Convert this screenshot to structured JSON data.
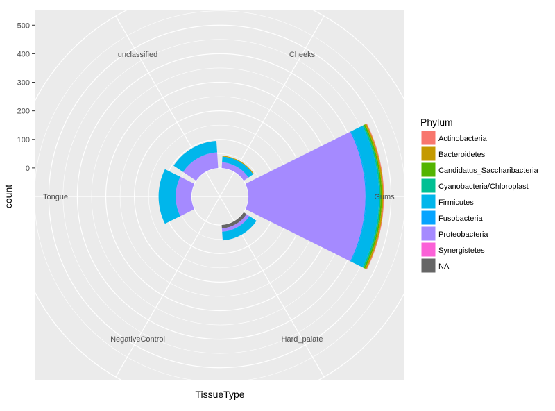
{
  "chart_data": {
    "type": "bar",
    "coord": "polar",
    "xlabel": "TissueType",
    "ylabel": "count",
    "categories": [
      "Gums",
      "Cheeks",
      "unclassified",
      "Tongue",
      "NegativeControl",
      "Hard_palate"
    ],
    "r_ticks": [
      0,
      100,
      200,
      300,
      400,
      500
    ],
    "rlim": [
      -100,
      630
    ],
    "grid": true,
    "legend": {
      "title": "Phylum",
      "position": "right",
      "entries": [
        {
          "name": "Actinobacteria",
          "color": "#F8766D"
        },
        {
          "name": "Bacteroidetes",
          "color": "#C49A00"
        },
        {
          "name": "Candidatus_Saccharibacteria",
          "color": "#53B400"
        },
        {
          "name": "Cyanobacteria/Chloroplast",
          "color": "#00C094"
        },
        {
          "name": "Firmicutes",
          "color": "#00B6EB"
        },
        {
          "name": "Fusobacteria",
          "color": "#06A4FF"
        },
        {
          "name": "Proteobacteria",
          "color": "#A58AFF"
        },
        {
          "name": "Synergistetes",
          "color": "#FB61D7"
        },
        {
          "name": "NA",
          "color": "#666666"
        }
      ]
    },
    "series": [
      {
        "name": "NA",
        "values": [
          0,
          0,
          0,
          0,
          0,
          12
        ]
      },
      {
        "name": "Synergistetes",
        "values": [
          0,
          0,
          0,
          0,
          0,
          0
        ]
      },
      {
        "name": "Proteobacteria",
        "values": [
          410,
          20,
          55,
          55,
          0,
          12
        ]
      },
      {
        "name": "Fusobacteria",
        "values": [
          3,
          0,
          0,
          0,
          0,
          0
        ]
      },
      {
        "name": "Firmicutes",
        "values": [
          45,
          20,
          40,
          60,
          0,
          30
        ]
      },
      {
        "name": "Cyanobacteria/Chloroplast",
        "values": [
          5,
          0,
          0,
          0,
          0,
          0
        ]
      },
      {
        "name": "Candidatus_Saccharibacteria",
        "values": [
          5,
          0,
          0,
          0,
          0,
          0
        ]
      },
      {
        "name": "Bacteroidetes",
        "values": [
          5,
          3,
          0,
          0,
          0,
          0
        ]
      },
      {
        "name": "Actinobacteria",
        "values": [
          2,
          0,
          0,
          0,
          0,
          0
        ]
      }
    ]
  }
}
